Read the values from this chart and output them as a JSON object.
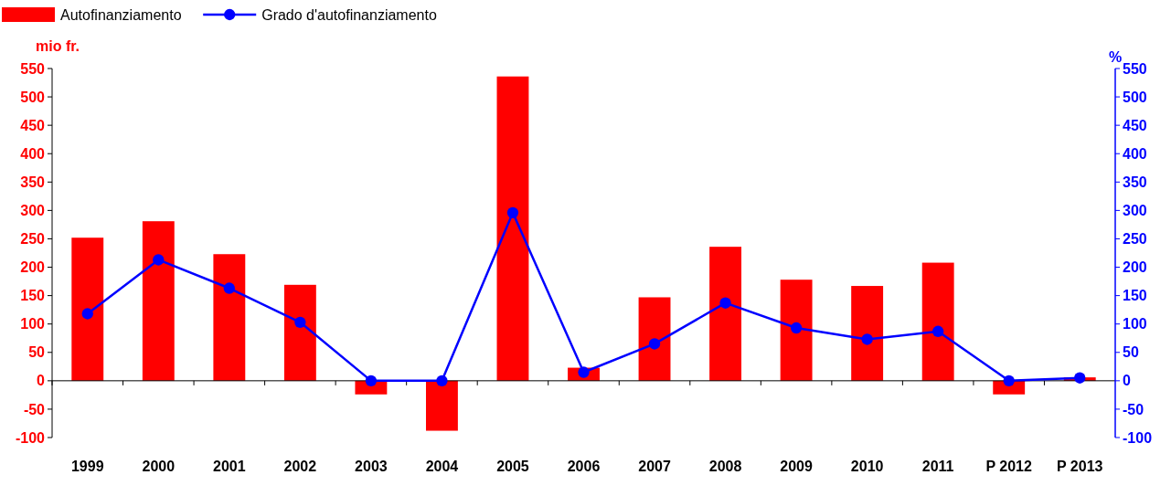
{
  "chart_data": {
    "type": "bar",
    "ylabel": "mio fr.",
    "y2label": "%",
    "categories": [
      "1999",
      "2000",
      "2001",
      "2002",
      "2003",
      "2004",
      "2005",
      "2006",
      "2007",
      "2008",
      "2009",
      "2010",
      "2011",
      "P 2012",
      "P 2013"
    ],
    "series": [
      {
        "name": "Autofinanziamento",
        "color": "#ff0000",
        "values": [
          252,
          281,
          223,
          169,
          -24,
          -88,
          536,
          23,
          147,
          236,
          178,
          167,
          208,
          -24,
          6
        ]
      },
      {
        "name": "Grado d'autofinanziamento",
        "type": "line",
        "axis": "y2",
        "color": "#0000ff",
        "marker": "circle",
        "values": [
          118,
          213,
          163,
          103,
          0,
          0,
          296,
          15,
          65,
          137,
          93,
          73,
          87,
          0,
          5
        ]
      }
    ],
    "ylim": [
      -100,
      550
    ],
    "yticks": [
      -100,
      -50,
      0,
      50,
      100,
      150,
      200,
      250,
      300,
      350,
      400,
      450,
      500,
      550
    ],
    "y2lim": [
      -100,
      550
    ],
    "y2ticks": [
      -100,
      -50,
      0,
      50,
      100,
      150,
      200,
      250,
      300,
      350,
      400,
      450,
      500,
      550
    ],
    "legend": "top left"
  }
}
